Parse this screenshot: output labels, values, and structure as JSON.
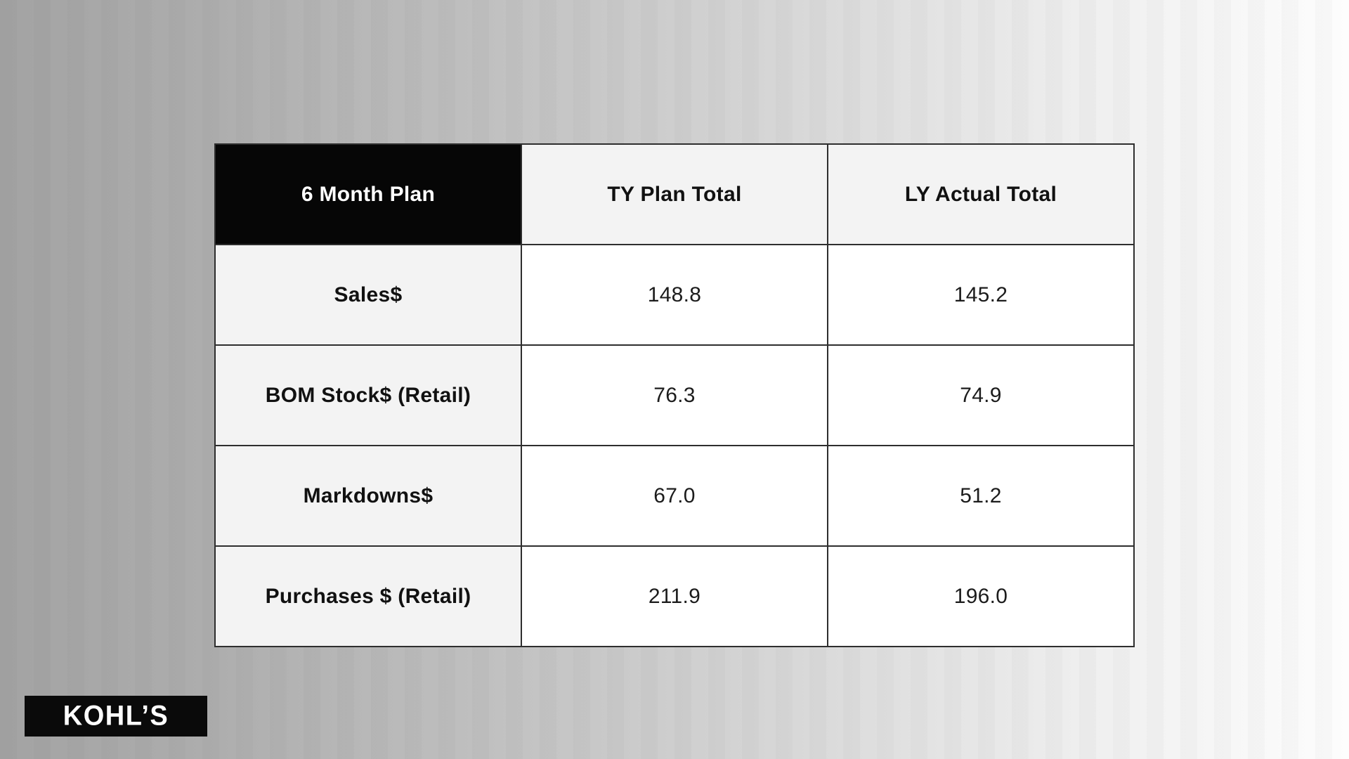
{
  "chart_data": {
    "type": "table",
    "title": "6 Month Plan",
    "columns": [
      "6 Month Plan",
      "TY Plan Total",
      "LY Actual Total"
    ],
    "rows": [
      {
        "label": "Sales$",
        "values": [
          148.8,
          145.2
        ]
      },
      {
        "label": "BOM Stock$ (Retail)",
        "values": [
          76.3,
          74.9
        ]
      },
      {
        "label": "Markdowns$",
        "values": [
          67.0,
          51.2
        ]
      },
      {
        "label": "Purchases $ (Retail)",
        "values": [
          211.9,
          196.0
        ]
      }
    ]
  },
  "table": {
    "title": "6 Month Plan",
    "col_ty": "TY Plan Total",
    "col_ly": "LY Actual Total",
    "rows": [
      {
        "label": "Sales$",
        "ty": "148.8",
        "ly": "145.2"
      },
      {
        "label": "BOM Stock$ (Retail)",
        "ty": "76.3",
        "ly": "74.9"
      },
      {
        "label": "Markdowns$",
        "ty": "67.0",
        "ly": "51.2"
      },
      {
        "label": "Purchases $ (Retail)",
        "ty": "211.9",
        "ly": "196.0"
      }
    ]
  },
  "logo": {
    "text": "KOHL’S"
  },
  "colors": {
    "header_bg": "#060606",
    "header_text": "#ffffff",
    "label_cell_bg": "#f3f3f3",
    "value_cell_bg": "#ffffff",
    "table_border": "#2e2e2e",
    "background_left": "#a3a3a3",
    "background_right": "#fdfdfd",
    "logo_bg": "#0a0a0a",
    "logo_text": "#ffffff"
  }
}
